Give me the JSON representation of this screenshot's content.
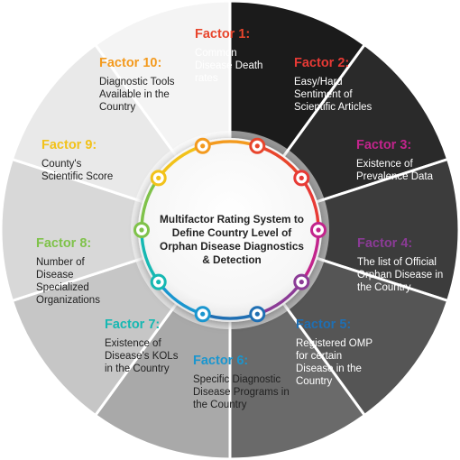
{
  "center_title": "Multifactor Rating System to Define Country Level of Orphan Disease Diagnostics & Detection",
  "factors": [
    {
      "title": "Factor 1:",
      "desc": "Common Disease Death rates",
      "color": "#e8452c",
      "segment": "#1b1b1b",
      "text": "#ffffff"
    },
    {
      "title": "Factor 2:",
      "desc": "Easy/Hard Sentiment of Scientific Articles",
      "color": "#e73a35",
      "segment": "#2a2a2a",
      "text": "#ffffff"
    },
    {
      "title": "Factor 3:",
      "desc": "Existence of Prevalence Data",
      "color": "#c2248c",
      "segment": "#3c3c3c",
      "text": "#ffffff"
    },
    {
      "title": "Factor 4:",
      "desc": "The list of Official Orphan Disease in the Country",
      "color": "#8b3b96",
      "segment": "#555555",
      "text": "#ffffff"
    },
    {
      "title": "Factor 5:",
      "desc": "Registered OMP for certain Disease in the Country",
      "color": "#1f6fb3",
      "segment": "#6a6a6a",
      "text": "#ffffff"
    },
    {
      "title": "Factor 6:",
      "desc": "Specific Diagnostic Disease Programs in the Country",
      "color": "#1a96cf",
      "segment": "#a9a9a9",
      "text": "#222222"
    },
    {
      "title": "Factor 7:",
      "desc": "Existence of Disease's KOLs in the Country",
      "color": "#16b8b2",
      "segment": "#c6c6c6",
      "text": "#222222"
    },
    {
      "title": "Factor 8:",
      "desc": "Number of Disease Specialized Organizations",
      "color": "#7fc24a",
      "segment": "#d8d8d8",
      "text": "#222222"
    },
    {
      "title": "Factor 9:",
      "desc": "County's Scientific Score",
      "color": "#f2c21a",
      "segment": "#e9e9e9",
      "text": "#222222"
    },
    {
      "title": "Factor 10:",
      "desc": "Diagnostic Tools Available in the Country",
      "color": "#f39a1e",
      "segment": "#f4f4f4",
      "text": "#222222"
    }
  ]
}
